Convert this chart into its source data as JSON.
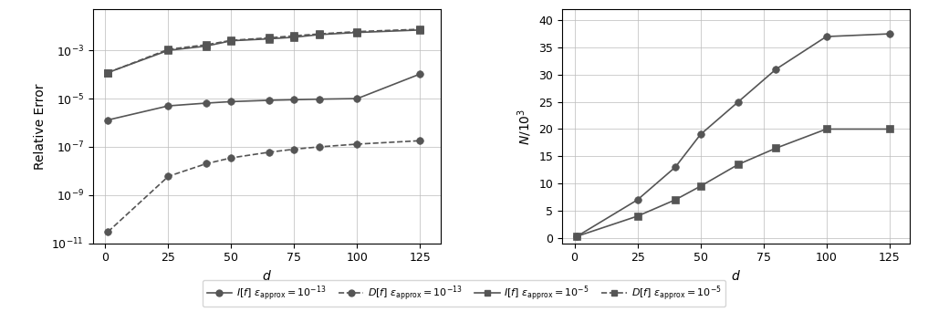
{
  "left_d": [
    1,
    25,
    40,
    50,
    65,
    75,
    85,
    100,
    125
  ],
  "left_I_e13": [
    1.3e-06,
    5e-06,
    6.5e-06,
    7.5e-06,
    8.5e-06,
    9e-06,
    9.5e-06,
    1e-05,
    0.000105
  ],
  "left_D_e13": [
    3e-11,
    6e-09,
    2e-08,
    3.5e-08,
    6e-08,
    8e-08,
    1e-07,
    1.3e-07,
    1.8e-07
  ],
  "left_I_e5": [
    0.00012,
    0.001,
    0.0015,
    0.0025,
    0.003,
    0.0035,
    0.0045,
    0.0055,
    0.007
  ],
  "left_D_e5": [
    0.00012,
    0.0011,
    0.0017,
    0.0026,
    0.0033,
    0.004,
    0.0048,
    0.006,
    0.0075
  ],
  "right_d": [
    1,
    25,
    40,
    50,
    65,
    80,
    100,
    125
  ],
  "right_I_e13": [
    0.3,
    7.0,
    13.0,
    19.0,
    25.0,
    31.0,
    37.0,
    37.5
  ],
  "right_I_e5": [
    0.3,
    4.0,
    7.0,
    9.5,
    13.5,
    16.5,
    20.0,
    20.0
  ],
  "color": "#555555",
  "ylim_left": [
    1e-11,
    0.05
  ],
  "ylim_right": [
    -1,
    42
  ],
  "xlim": [
    -5,
    133
  ],
  "xticks": [
    0,
    25,
    50,
    75,
    100,
    125
  ],
  "yticks_right": [
    0,
    5,
    10,
    15,
    20,
    25,
    30,
    35,
    40
  ],
  "grid_color": "#bbbbbb",
  "legend_labels": [
    "$I[f]$ $\\epsilon_{\\rm approx} = 10^{-13}$",
    "$D[f]$ $\\epsilon_{\\rm approx} = 10^{-13}$",
    "$I[f]$ $\\epsilon_{\\rm approx} = 10^{-5}$",
    "$D[f]$ $\\epsilon_{\\rm approx} = 10^{-5}$"
  ]
}
